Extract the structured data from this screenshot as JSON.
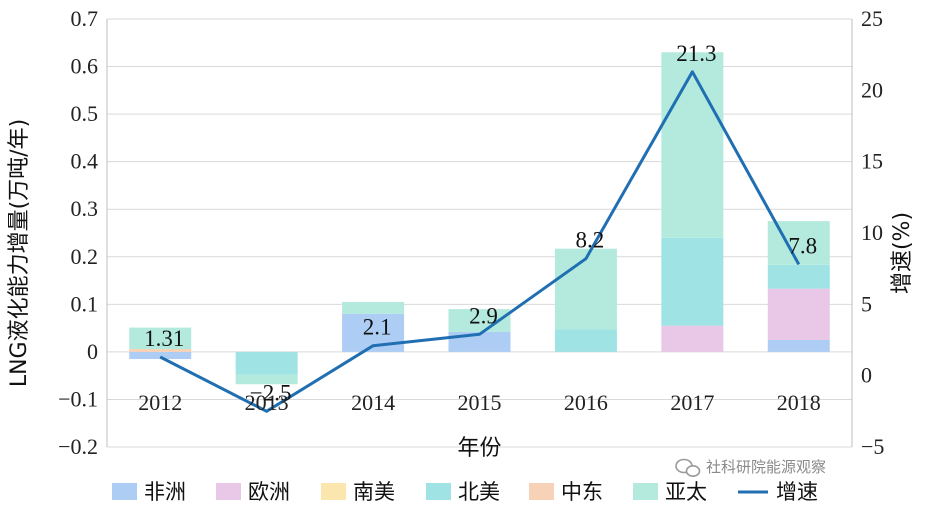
{
  "chart_data": {
    "type": "bar",
    "stacked": true,
    "categories": [
      "2012",
      "2013",
      "2014",
      "2015",
      "2016",
      "2017",
      "2018"
    ],
    "xlabel": "年份",
    "ylabel": "LNG液化能力增量(万吨/年)",
    "y2label": "增速(%)",
    "ylim": [
      -0.2,
      0.7
    ],
    "y2lim": [
      -5,
      25
    ],
    "yticks": [
      "0.7",
      "0.6",
      "0.5",
      "0.4",
      "0.3",
      "0.2",
      "0.1",
      "0",
      "−0.1",
      "−0.2"
    ],
    "y2ticks": [
      "25",
      "20",
      "15",
      "10",
      "5",
      "0",
      "−5"
    ],
    "series": [
      {
        "name": "非洲",
        "color": "#aecdf4",
        "values": [
          -0.015,
          0,
          0.08,
          0.042,
          0,
          0,
          0.025
        ]
      },
      {
        "name": "欧洲",
        "color": "#e8c8e6",
        "values": [
          0,
          0,
          0,
          0,
          0,
          0.055,
          0.108
        ]
      },
      {
        "name": "南美",
        "color": "#fbe7ae",
        "values": [
          0,
          0,
          0,
          0,
          0,
          0,
          0
        ]
      },
      {
        "name": "北美",
        "color": "#9fe3e4",
        "values": [
          0,
          -0.048,
          0,
          0,
          0.047,
          0.185,
          0.05
        ]
      },
      {
        "name": "中东",
        "color": "#f8d2b6",
        "values": [
          0.006,
          0,
          0,
          0,
          0,
          0,
          0
        ]
      },
      {
        "name": "亚太",
        "color": "#b3eadd",
        "values": [
          0.045,
          -0.02,
          0.025,
          0.048,
          0.17,
          0.39,
          0.092
        ]
      }
    ],
    "line": {
      "name": "增速",
      "color": "#1f6fb2",
      "axis": "right",
      "values": [
        1.31,
        -2.5,
        2.1,
        2.9,
        8.2,
        21.3,
        7.8
      ],
      "labels": [
        "1.31",
        "−2.5",
        "2.1",
        "2.9",
        "8.2",
        "21.3",
        "7.8"
      ]
    }
  },
  "watermark": "社科研院能源观察"
}
